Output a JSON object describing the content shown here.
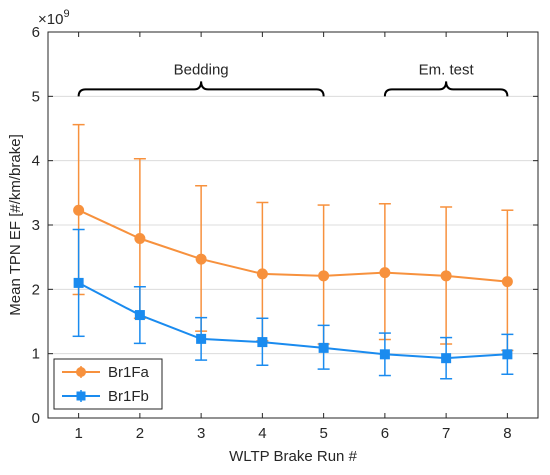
{
  "chart_data": {
    "type": "line",
    "xlabel": "WLTP Brake Run #",
    "ylabel": "Mean TPN EF [#/km/brake]",
    "exponent_label": "×10",
    "exponent_power": "9",
    "x": [
      1,
      2,
      3,
      4,
      5,
      6,
      7,
      8
    ],
    "xlim": [
      0.5,
      8.5
    ],
    "ylim": [
      0,
      6
    ],
    "x_ticks": [
      1,
      2,
      3,
      4,
      5,
      6,
      7,
      8
    ],
    "y_ticks": [
      0,
      1,
      2,
      3,
      4,
      5,
      6
    ],
    "grid": "horizontal",
    "legend_placement": "bottom-left",
    "series": [
      {
        "name": "Br1Fa",
        "color": "#f7913d",
        "marker": "circle",
        "values": [
          3.23,
          2.79,
          2.47,
          2.24,
          2.21,
          2.26,
          2.21,
          2.12
        ],
        "error_low": [
          1.92,
          1.55,
          1.35,
          1.2,
          1.15,
          1.22,
          1.15,
          1.05
        ],
        "error_high": [
          4.56,
          4.03,
          3.61,
          3.35,
          3.31,
          3.33,
          3.28,
          3.23
        ]
      },
      {
        "name": "Br1Fb",
        "color": "#1a8bef",
        "marker": "square",
        "values": [
          2.1,
          1.6,
          1.23,
          1.18,
          1.09,
          0.99,
          0.93,
          0.99
        ],
        "error_low": [
          1.27,
          1.16,
          0.9,
          0.82,
          0.76,
          0.66,
          0.61,
          0.68
        ],
        "error_high": [
          2.93,
          2.04,
          1.56,
          1.55,
          1.44,
          1.32,
          1.25,
          1.3
        ]
      }
    ],
    "annotations": [
      {
        "label": "Bedding",
        "x_start": 1,
        "x_end": 5,
        "y": 5.0
      },
      {
        "label": "Em. test",
        "x_start": 6,
        "x_end": 8,
        "y": 5.0
      }
    ]
  }
}
